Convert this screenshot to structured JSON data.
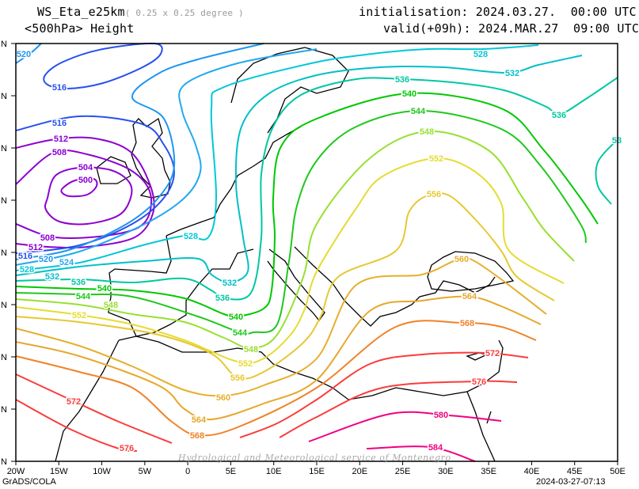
{
  "header": {
    "model": "WS_Eta_e25km",
    "resolution": "( 0.25 x 0.25 degree )",
    "field": "<500hPa> Height",
    "initialisation": "initialisation: 2024.03.27.  00:00 UTC",
    "valid": "valid(+09h): 2024.MAR.27  09:00 UTC"
  },
  "axes": {
    "x_ticks": [
      "20W",
      "15W",
      "10W",
      "5W",
      "0",
      "5E",
      "10E",
      "15E",
      "20E",
      "25E",
      "30E",
      "35E",
      "40E",
      "45E",
      "50E"
    ],
    "y_tick_suffix": "N"
  },
  "watermark": "Hydrological and Meteorological service of Montenegro",
  "footer": {
    "left": "GrADS/COLA",
    "right": "2024-03-27-07:13"
  },
  "contour_levels": [
    {
      "level": 500,
      "color": "#8c00d0"
    },
    {
      "level": 504,
      "color": "#8c00d0"
    },
    {
      "level": 508,
      "color": "#8c00d0"
    },
    {
      "level": 512,
      "color": "#8c00d0"
    },
    {
      "level": 516,
      "color": "#2850f0"
    },
    {
      "level": 520,
      "color": "#1e96f0"
    },
    {
      "level": 524,
      "color": "#22a8f0"
    },
    {
      "level": 528,
      "color": "#00c8d8"
    },
    {
      "level": 532,
      "color": "#00c0c8"
    },
    {
      "level": 536,
      "color": "#00c8a0"
    },
    {
      "level": 540,
      "color": "#00c800"
    },
    {
      "level": 544,
      "color": "#1ec81e"
    },
    {
      "level": 548,
      "color": "#98e030"
    },
    {
      "level": 552,
      "color": "#e6dc32"
    },
    {
      "level": 556,
      "color": "#e6c832"
    },
    {
      "level": 560,
      "color": "#e6af2d"
    },
    {
      "level": 564,
      "color": "#e6a82d"
    },
    {
      "level": 568,
      "color": "#f08228"
    },
    {
      "level": 572,
      "color": "#fa3c3c"
    },
    {
      "level": 576,
      "color": "#fa3c3c"
    },
    {
      "level": 580,
      "color": "#f00082"
    },
    {
      "level": 584,
      "color": "#f00082"
    }
  ],
  "contour_labels": [
    "520",
    "516",
    "516",
    "512",
    "508",
    "504",
    "500",
    "508",
    "512",
    "516",
    "520",
    "524",
    "528",
    "532",
    "536",
    "540",
    "544",
    "548",
    "552",
    "528",
    "532",
    "536",
    "540",
    "544",
    "548",
    "552",
    "556",
    "560",
    "564",
    "568",
    "572",
    "576",
    "528",
    "532",
    "536",
    "540",
    "544",
    "548",
    "552",
    "556",
    "536",
    "53",
    "560",
    "564",
    "568",
    "572",
    "576",
    "580",
    "584"
  ]
}
